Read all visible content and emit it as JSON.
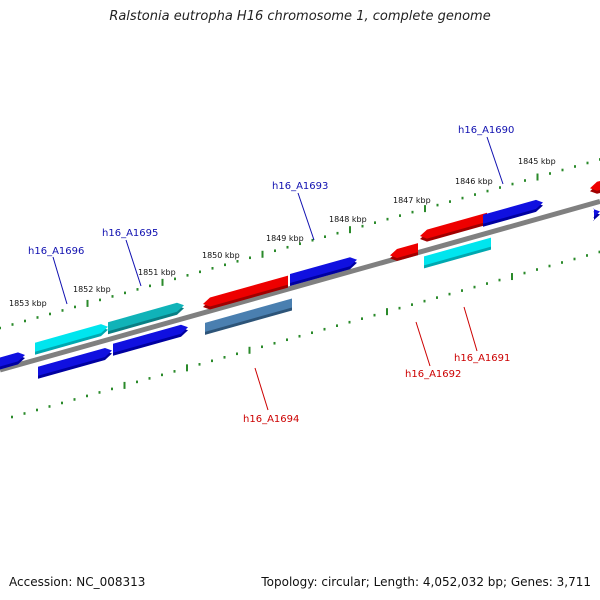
{
  "title": "Ralstonia eutropha H16 chromosome 1, complete genome",
  "footer": {
    "accession": "Accession: NC_008313",
    "summary": "Topology: circular; Length: 4,052,032 bp; Genes: 3,711"
  },
  "colors": {
    "backbone": "#808080",
    "ticks": "#2a8a2a",
    "label_forward": "#1010b0",
    "label_reverse": "#cc0000",
    "blue": "#1010e0",
    "cyan": "#00e5ee",
    "teal": "#10b3b8",
    "red": "#ee0000",
    "steel": "#4a7fb0"
  },
  "scale_labels": [
    "1845 kbp",
    "1846 kbp",
    "1847 kbp",
    "1848 kbp",
    "1849 kbp",
    "1850 kbp",
    "1851 kbp",
    "1852 kbp",
    "1853 kbp"
  ],
  "gene_labels": [
    {
      "name": "h16_A1690",
      "strand": "forward"
    },
    {
      "name": "h16_A1693",
      "strand": "forward"
    },
    {
      "name": "h16_A1695",
      "strand": "forward"
    },
    {
      "name": "h16_A1696",
      "strand": "forward"
    },
    {
      "name": "h16_A1691",
      "strand": "reverse"
    },
    {
      "name": "h16_A1692",
      "strand": "reverse"
    },
    {
      "name": "h16_A1694",
      "strand": "reverse"
    }
  ]
}
